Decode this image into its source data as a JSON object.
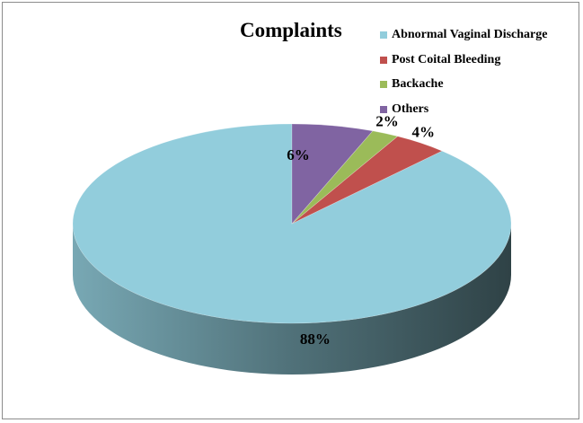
{
  "chart_data": {
    "type": "pie",
    "title": "Complaints",
    "categories": [
      "Abnormal Vaginal Discharge",
      "Post Coital Bleeding",
      "Backache",
      "Others"
    ],
    "values": [
      88,
      4,
      2,
      6
    ],
    "data_labels": [
      "88%",
      "4%",
      "2%",
      "6%"
    ],
    "colors": [
      "#92CDDC",
      "#C0504D",
      "#9BBB59",
      "#8064A2"
    ],
    "legend_position": "top-right",
    "style": "3d"
  }
}
